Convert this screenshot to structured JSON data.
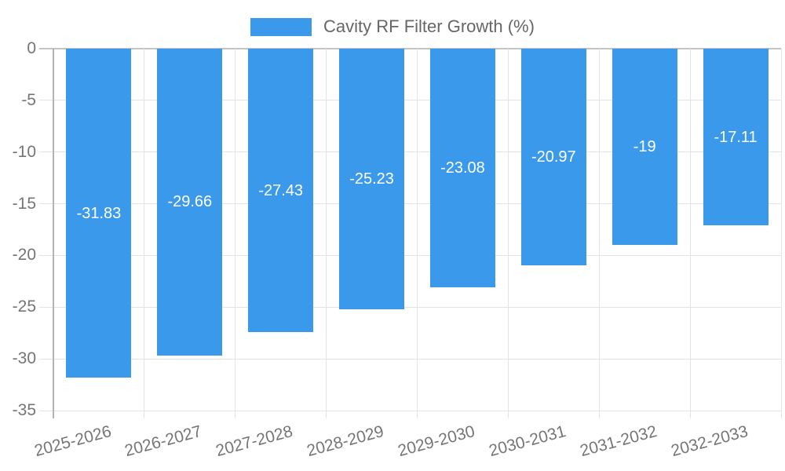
{
  "chart": {
    "legend": {
      "position": "top"
    },
    "colors": {
      "bar": "#3b99ec",
      "grid": "#e3e3e3",
      "zero_line": "#c4c4c4",
      "axis_line": "#b3b3b3",
      "tick_text": "#757575",
      "legend_text": "#666666",
      "value_text": "#ffffff",
      "background": "#ffffff"
    }
  },
  "chart_data": {
    "type": "bar",
    "title": "Cavity RF Filter Growth (%)",
    "legend_entries": [
      "Cavity RF Filter Growth (%)"
    ],
    "legend_position": "top",
    "categories": [
      "2025-2026",
      "2026-2027",
      "2027-2028",
      "2028-2029",
      "2029-2030",
      "2030-2031",
      "2031-2032",
      "2032-2033"
    ],
    "values": [
      -31.83,
      -29.66,
      -27.43,
      -25.23,
      -23.08,
      -20.97,
      -19,
      -17.11
    ],
    "value_labels": [
      "-31.83",
      "-29.66",
      "-27.43",
      "-25.23",
      "-23.08",
      "-20.97",
      "-19",
      "-17.11"
    ],
    "xlabel": "",
    "ylabel": "",
    "ylim": [
      -35,
      0
    ],
    "yticks": [
      0,
      -5,
      -10,
      -15,
      -20,
      -25,
      -30,
      -35
    ],
    "grid": true,
    "x_label_rotation_deg": -15
  }
}
